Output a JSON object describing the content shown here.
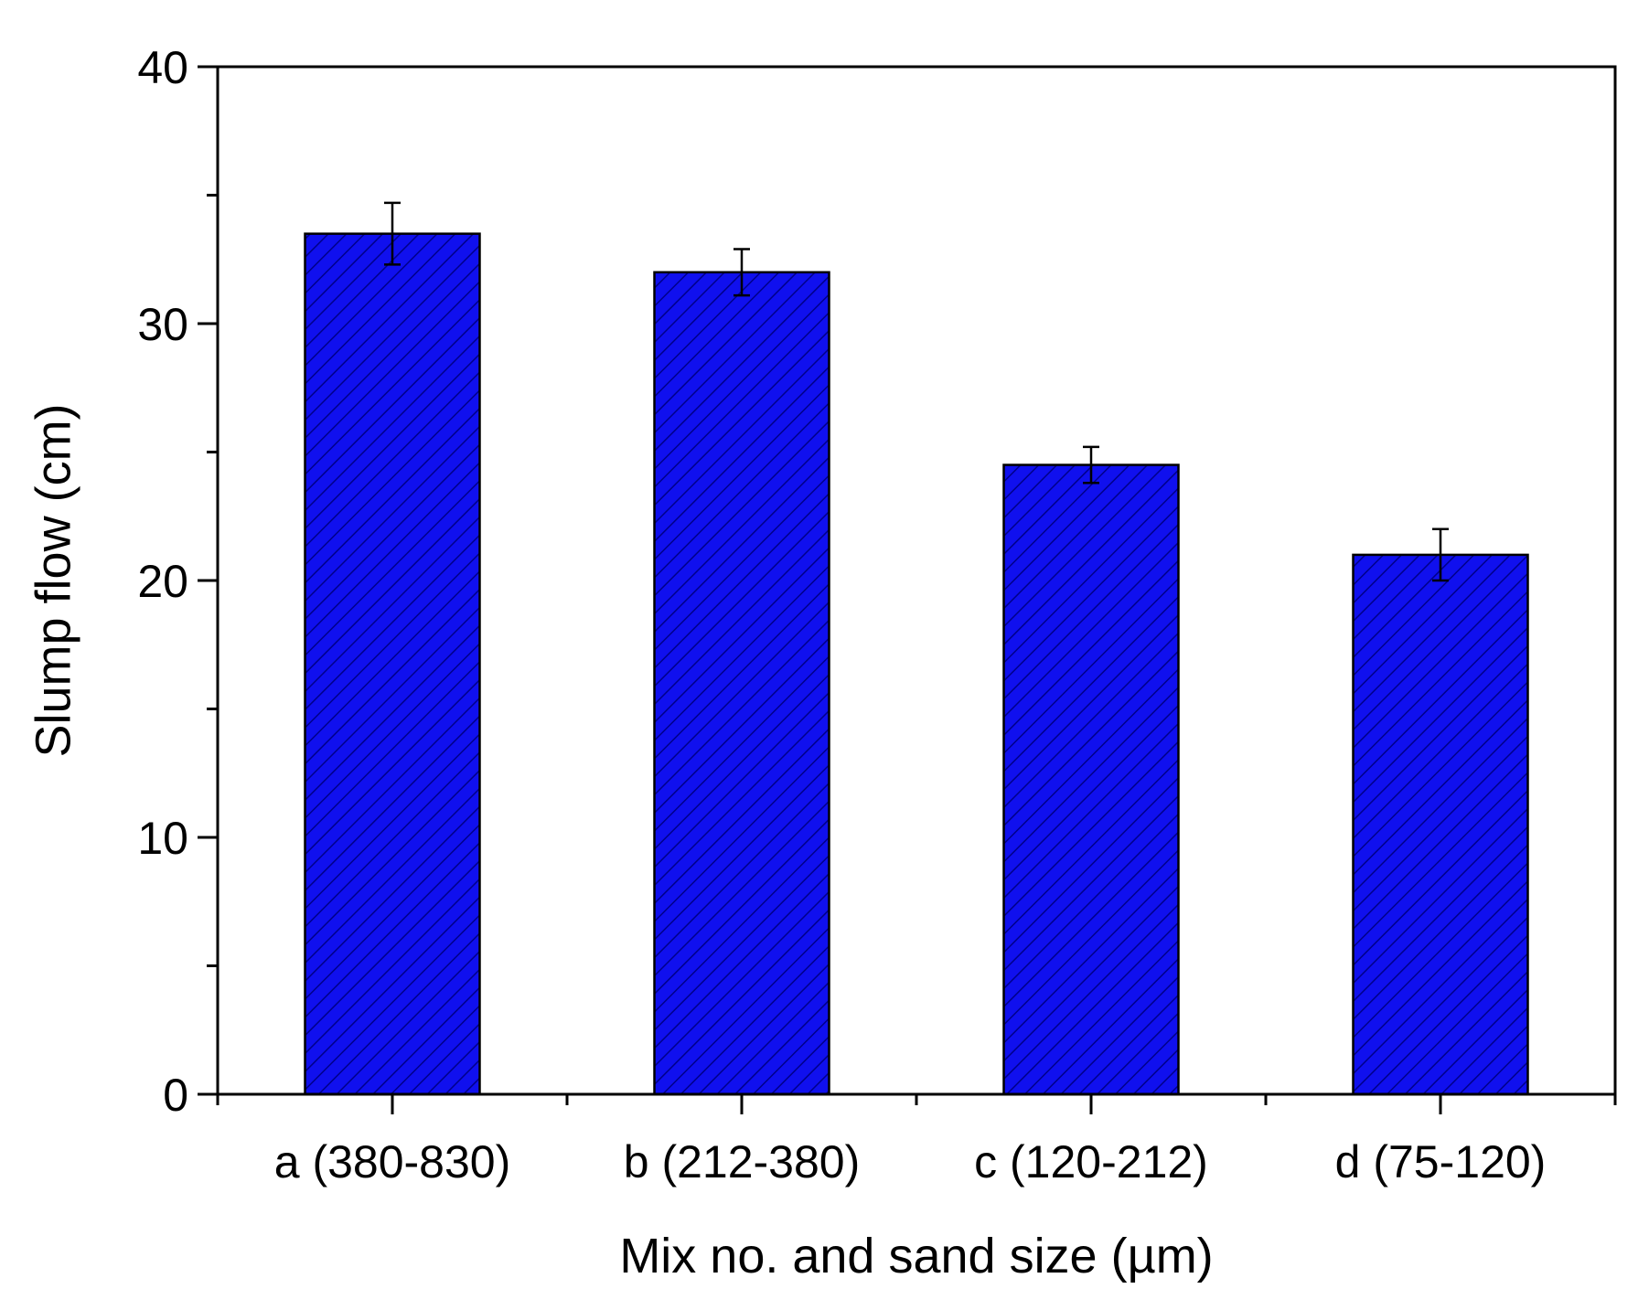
{
  "chart_data": {
    "type": "bar",
    "title": "",
    "xlabel": "Mix no. and sand size (µm)",
    "ylabel": "Slump flow (cm)",
    "ylim": [
      0,
      40
    ],
    "yticks": [
      "0",
      "10",
      "20",
      "30",
      "40"
    ],
    "y_minor_ticks": [
      5,
      15,
      25,
      35
    ],
    "grid": false,
    "legend": "none",
    "bar_pattern": "diagonal hatch",
    "categories": [
      "a (380-830)",
      "b (212-380)",
      "c (120-212)",
      "d (75-120)"
    ],
    "values": [
      33.5,
      32.0,
      24.5,
      21.0
    ],
    "errors": [
      1.2,
      0.9,
      0.7,
      1.0
    ],
    "colors": {
      "bar_fill": "#1010ee",
      "bar_hatch": "#00008a",
      "bar_edge": "#000000",
      "axis": "#000000",
      "background": "#ffffff"
    }
  }
}
